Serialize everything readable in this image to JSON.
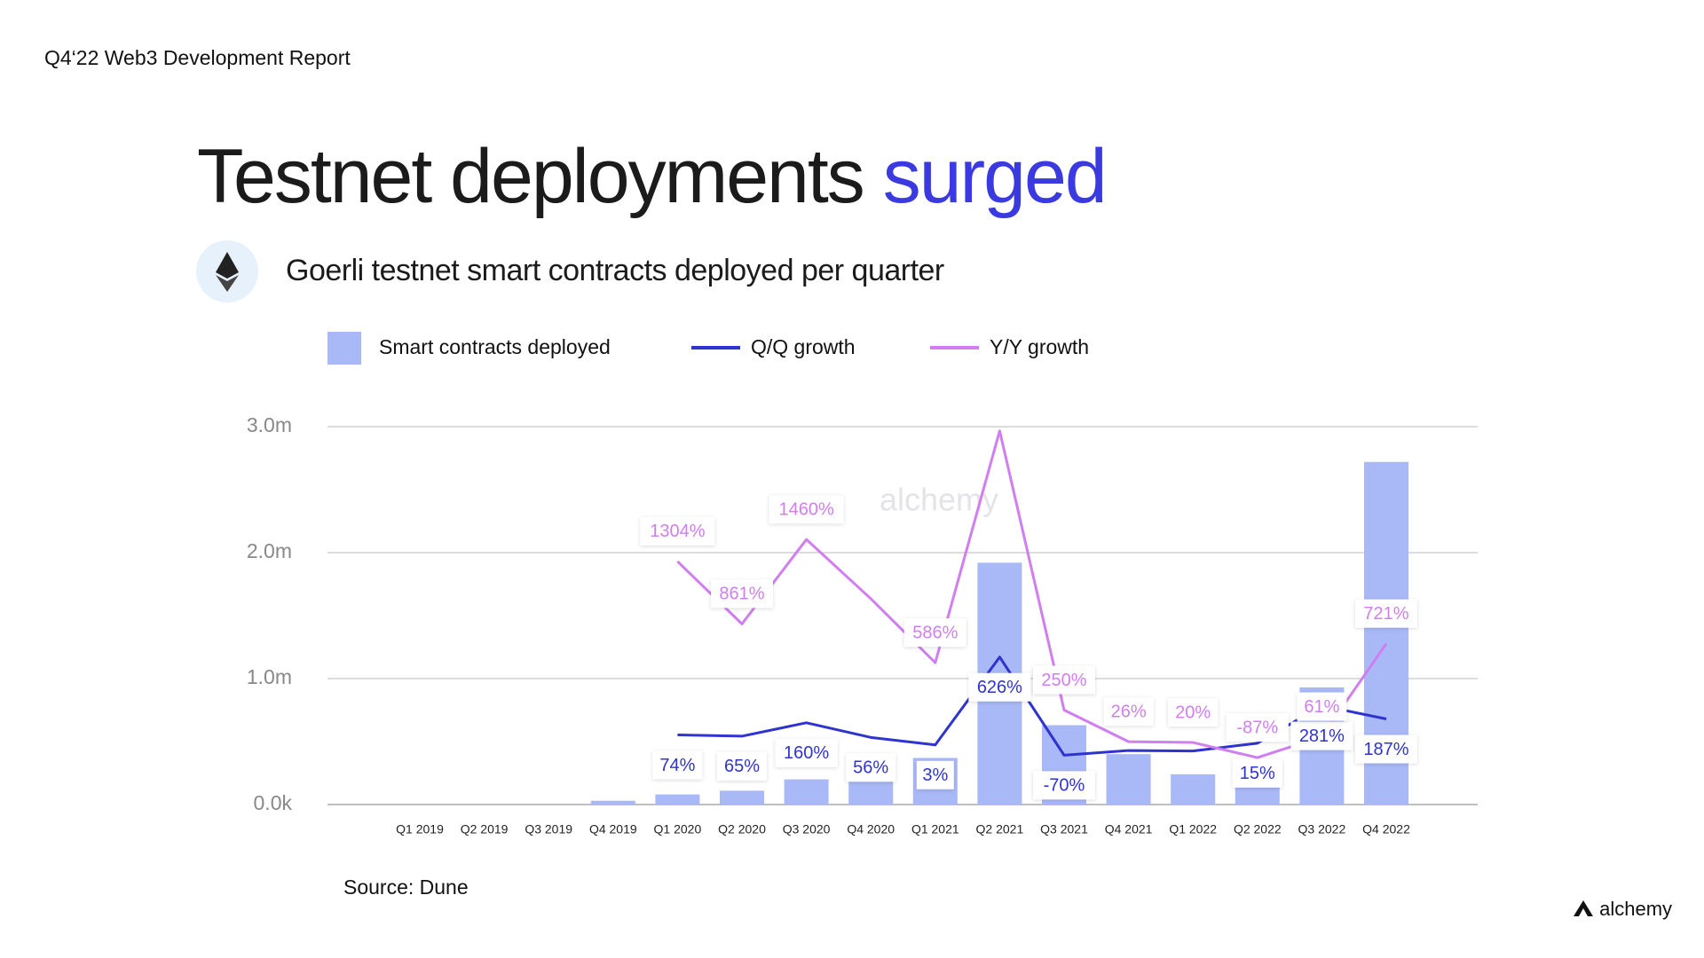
{
  "header": {
    "report": "Q4‘22 Web3 Development Report",
    "logo": "alchemy"
  },
  "chart_data": {
    "type": "bar",
    "title": "Testnet deployments",
    "title_highlight": "surged",
    "subtitle": "Goerli testnet smart contracts deployed per quarter",
    "source": "Source: Dune",
    "watermark": "alchemy",
    "categories": [
      "Q1 2019",
      "Q2 2019",
      "Q3 2019",
      "Q4 2019",
      "Q1 2020",
      "Q2 2020",
      "Q3 2020",
      "Q4 2020",
      "Q1 2021",
      "Q2 2021",
      "Q3 2021",
      "Q4 2021",
      "Q1 2022",
      "Q2 2022",
      "Q3 2022",
      "Q4 2022"
    ],
    "series": [
      {
        "name": "Smart contracts deployed",
        "type": "bar",
        "color": "#a9b8f6",
        "values": [
          0,
          0,
          0,
          30000,
          80000,
          110000,
          200000,
          370000,
          370000,
          1920000,
          630000,
          400000,
          240000,
          280000,
          930000,
          2720000
        ]
      },
      {
        "name": "Q/Q growth",
        "type": "line",
        "axis": "y2",
        "color": "#2f33cf",
        "values": [
          null,
          null,
          null,
          null,
          74,
          65,
          160,
          56,
          3,
          626,
          -70,
          -37,
          -40,
          15,
          281,
          187
        ],
        "value_labels": [
          null,
          null,
          null,
          null,
          "74%",
          "65%",
          "160%",
          "56%",
          "3%",
          "626%",
          "-70%",
          null,
          null,
          "15%",
          "281%",
          "187%"
        ]
      },
      {
        "name": "Y/Y growth",
        "type": "line",
        "axis": "y2",
        "color": "#d07ef0",
        "values": [
          null,
          null,
          null,
          null,
          1304,
          861,
          1460,
          1040,
          586,
          2230,
          250,
          26,
          20,
          -87,
          61,
          721
        ],
        "value_labels": [
          null,
          null,
          null,
          null,
          "1304%",
          "861%",
          "1460%",
          null,
          "586%",
          null,
          "250%",
          "26%",
          "20%",
          "-87%",
          "61%",
          "721%"
        ]
      }
    ],
    "ylim": [
      0,
      3000000
    ],
    "yticks": [
      {
        "value": 0,
        "label": "0.0k"
      },
      {
        "value": 1000000,
        "label": "1.0m"
      },
      {
        "value": 2000000,
        "label": "2.0m"
      },
      {
        "value": 3000000,
        "label": "3.0m"
      }
    ],
    "y2lim": [
      -420,
      2260
    ],
    "grid": true
  }
}
